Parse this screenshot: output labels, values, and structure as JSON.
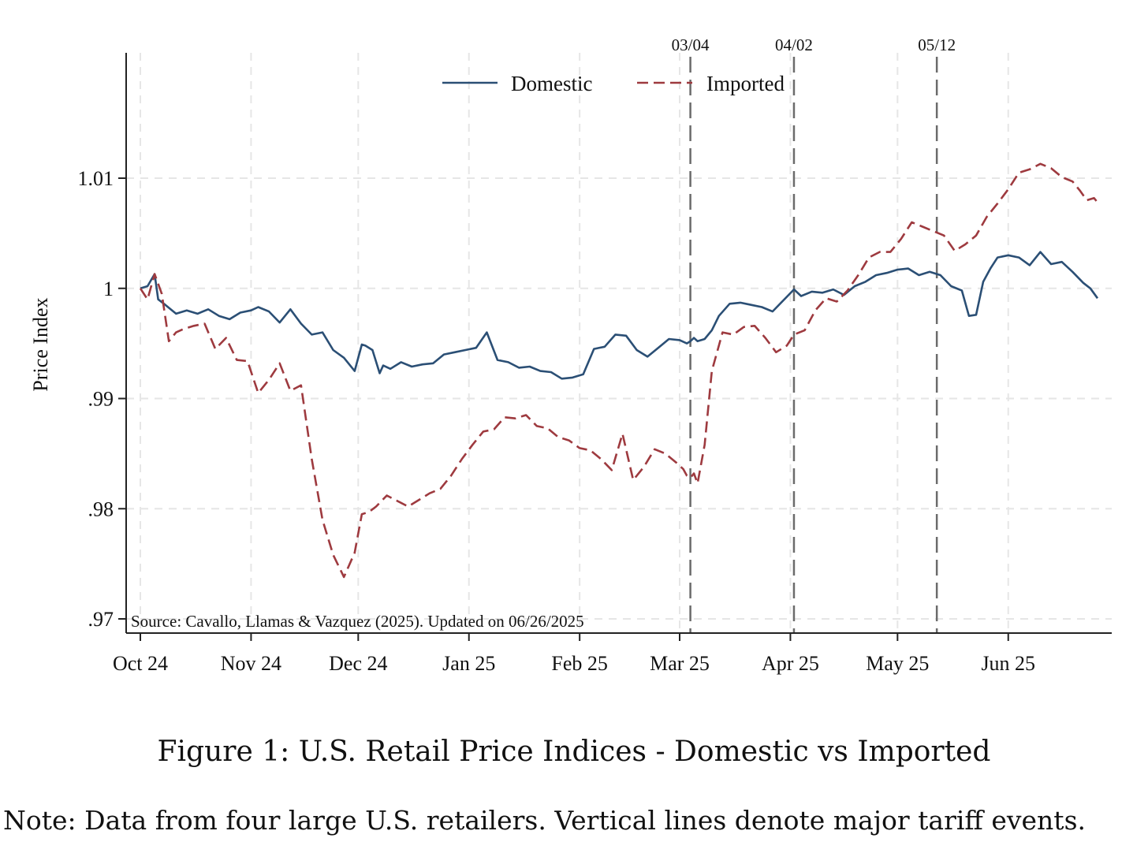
{
  "figure": {
    "caption": "Figure 1: U.S. Retail Price Indices - Domestic vs Imported",
    "note": "Note: Data from four large U.S. retailers. Vertical lines denote major tariff events."
  },
  "chart_data": {
    "type": "line",
    "ylabel": "Price Index",
    "xlabel": "",
    "ylim": [
      0.9685,
      1.0205
    ],
    "yticks": [
      0.97,
      0.98,
      0.99,
      1.0,
      1.01
    ],
    "ytick_labels": [
      ".97",
      ".98",
      ".99",
      "1",
      "1.01"
    ],
    "x_range": [
      "2024-10-01",
      "2025-06-26"
    ],
    "xticks": [
      "2024-10-01",
      "2024-11-01",
      "2024-12-01",
      "2025-01-01",
      "2025-02-01",
      "2025-03-01",
      "2025-04-01",
      "2025-05-01",
      "2025-06-01"
    ],
    "xtick_labels": [
      "Oct 24",
      "Nov 24",
      "Dec 24",
      "Jan 25",
      "Feb 25",
      "Mar 25",
      "Apr 25",
      "May 25",
      "Jun 25"
    ],
    "grid": true,
    "legend_position": "top-center",
    "source_note": "Source: Cavallo, Llamas & Vazquez (2025). Updated on 06/26/2025",
    "event_lines": [
      {
        "date": "2025-03-04",
        "label": "03/04"
      },
      {
        "date": "2025-04-02",
        "label": "04/02"
      },
      {
        "date": "2025-05-12",
        "label": "05/12"
      }
    ],
    "series": [
      {
        "name": "Domestic",
        "color": "#2b4f75",
        "style": "solid",
        "x": [
          "2024-10-01",
          "2024-10-03",
          "2024-10-05",
          "2024-10-06",
          "2024-10-08",
          "2024-10-11",
          "2024-10-14",
          "2024-10-17",
          "2024-10-20",
          "2024-10-23",
          "2024-10-26",
          "2024-10-29",
          "2024-11-01",
          "2024-11-03",
          "2024-11-06",
          "2024-11-09",
          "2024-11-12",
          "2024-11-15",
          "2024-11-18",
          "2024-11-21",
          "2024-11-24",
          "2024-11-27",
          "2024-11-30",
          "2024-12-02",
          "2024-12-03",
          "2024-12-05",
          "2024-12-07",
          "2024-12-08",
          "2024-12-10",
          "2024-12-13",
          "2024-12-16",
          "2024-12-19",
          "2024-12-22",
          "2024-12-25",
          "2024-12-28",
          "2024-12-31",
          "2025-01-03",
          "2025-01-06",
          "2025-01-09",
          "2025-01-12",
          "2025-01-15",
          "2025-01-18",
          "2025-01-21",
          "2025-01-24",
          "2025-01-27",
          "2025-01-30",
          "2025-02-02",
          "2025-02-05",
          "2025-02-08",
          "2025-02-11",
          "2025-02-14",
          "2025-02-17",
          "2025-02-20",
          "2025-02-23",
          "2025-02-26",
          "2025-03-01",
          "2025-03-03",
          "2025-03-04",
          "2025-03-05",
          "2025-03-06",
          "2025-03-08",
          "2025-03-10",
          "2025-03-12",
          "2025-03-15",
          "2025-03-18",
          "2025-03-21",
          "2025-03-24",
          "2025-03-27",
          "2025-03-30",
          "2025-04-02",
          "2025-04-04",
          "2025-04-07",
          "2025-04-10",
          "2025-04-13",
          "2025-04-16",
          "2025-04-19",
          "2025-04-22",
          "2025-04-25",
          "2025-04-28",
          "2025-05-01",
          "2025-05-04",
          "2025-05-07",
          "2025-05-10",
          "2025-05-13",
          "2025-05-16",
          "2025-05-19",
          "2025-05-21",
          "2025-05-23",
          "2025-05-25",
          "2025-05-27",
          "2025-05-29",
          "2025-06-01",
          "2025-06-04",
          "2025-06-07",
          "2025-06-10",
          "2025-06-13",
          "2025-06-16",
          "2025-06-19",
          "2025-06-22",
          "2025-06-24",
          "2025-06-26"
        ],
        "y": [
          1.0,
          1.0002,
          1.0013,
          0.999,
          0.9985,
          0.9977,
          0.998,
          0.9977,
          0.9981,
          0.9975,
          0.9972,
          0.9978,
          0.998,
          0.9983,
          0.9979,
          0.9969,
          0.9981,
          0.9968,
          0.9958,
          0.996,
          0.9944,
          0.9937,
          0.9925,
          0.9949,
          0.9948,
          0.9944,
          0.9923,
          0.993,
          0.9927,
          0.9933,
          0.9929,
          0.9931,
          0.9932,
          0.994,
          0.9942,
          0.9944,
          0.9946,
          0.996,
          0.9935,
          0.9933,
          0.9928,
          0.9929,
          0.9925,
          0.9924,
          0.9918,
          0.9919,
          0.9922,
          0.9945,
          0.9947,
          0.9958,
          0.9957,
          0.9944,
          0.9938,
          0.9946,
          0.9954,
          0.9953,
          0.995,
          0.9952,
          0.9955,
          0.9952,
          0.9954,
          0.9962,
          0.9975,
          0.9986,
          0.9987,
          0.9985,
          0.9983,
          0.9979,
          0.9989,
          0.9999,
          0.9993,
          0.9997,
          0.9996,
          0.9999,
          0.9994,
          1.0002,
          1.0006,
          1.0012,
          1.0014,
          1.0017,
          1.0018,
          1.0012,
          1.0015,
          1.0012,
          1.0002,
          0.9998,
          0.9975,
          0.9976,
          1.0006,
          1.0018,
          1.0028,
          1.003,
          1.0028,
          1.0021,
          1.0033,
          1.0022,
          1.0024,
          1.0015,
          1.0005,
          1.0,
          0.9991
        ]
      },
      {
        "name": "Imported",
        "color": "#9e3a3f",
        "style": "dashed",
        "x": [
          "2024-10-01",
          "2024-10-03",
          "2024-10-05",
          "2024-10-07",
          "2024-10-09",
          "2024-10-11",
          "2024-10-13",
          "2024-10-16",
          "2024-10-19",
          "2024-10-22",
          "2024-10-25",
          "2024-10-28",
          "2024-10-31",
          "2024-11-03",
          "2024-11-06",
          "2024-11-09",
          "2024-11-12",
          "2024-11-15",
          "2024-11-18",
          "2024-11-21",
          "2024-11-24",
          "2024-11-27",
          "2024-11-30",
          "2024-12-02",
          "2024-12-04",
          "2024-12-06",
          "2024-12-09",
          "2024-12-12",
          "2024-12-15",
          "2024-12-18",
          "2024-12-21",
          "2024-12-24",
          "2024-12-27",
          "2024-12-30",
          "2025-01-02",
          "2025-01-05",
          "2025-01-08",
          "2025-01-11",
          "2025-01-14",
          "2025-01-17",
          "2025-01-20",
          "2025-01-23",
          "2025-01-26",
          "2025-01-29",
          "2025-02-01",
          "2025-02-04",
          "2025-02-07",
          "2025-02-10",
          "2025-02-13",
          "2025-02-16",
          "2025-02-19",
          "2025-02-22",
          "2025-02-25",
          "2025-02-28",
          "2025-03-02",
          "2025-03-03",
          "2025-03-04",
          "2025-03-05",
          "2025-03-06",
          "2025-03-08",
          "2025-03-10",
          "2025-03-13",
          "2025-03-16",
          "2025-03-19",
          "2025-03-22",
          "2025-03-25",
          "2025-03-28",
          "2025-03-31",
          "2025-04-02",
          "2025-04-05",
          "2025-04-08",
          "2025-04-11",
          "2025-04-14",
          "2025-04-17",
          "2025-04-20",
          "2025-04-23",
          "2025-04-26",
          "2025-04-29",
          "2025-05-02",
          "2025-05-05",
          "2025-05-08",
          "2025-05-11",
          "2025-05-14",
          "2025-05-17",
          "2025-05-20",
          "2025-05-23",
          "2025-05-26",
          "2025-05-29",
          "2025-06-01",
          "2025-06-04",
          "2025-06-07",
          "2025-06-10",
          "2025-06-13",
          "2025-06-16",
          "2025-06-19",
          "2025-06-21",
          "2025-06-23",
          "2025-06-25",
          "2025-06-26"
        ],
        "y": [
          1.0,
          0.999,
          1.0013,
          0.9995,
          0.9952,
          0.996,
          0.9963,
          0.9966,
          0.9968,
          0.9945,
          0.9955,
          0.9935,
          0.9934,
          0.9905,
          0.9917,
          0.9932,
          0.9907,
          0.9912,
          0.9845,
          0.979,
          0.9758,
          0.9738,
          0.976,
          0.9795,
          0.9797,
          0.9802,
          0.9812,
          0.9807,
          0.9802,
          0.9808,
          0.9814,
          0.9818,
          0.983,
          0.9845,
          0.9858,
          0.987,
          0.9872,
          0.9883,
          0.9882,
          0.9885,
          0.9875,
          0.9873,
          0.9865,
          0.9862,
          0.9855,
          0.9853,
          0.9845,
          0.9835,
          0.9868,
          0.9826,
          0.9838,
          0.9854,
          0.985,
          0.9842,
          0.9836,
          0.983,
          0.9828,
          0.9832,
          0.9823,
          0.9858,
          0.9925,
          0.996,
          0.9958,
          0.9965,
          0.9966,
          0.9955,
          0.9942,
          0.9948,
          0.9958,
          0.9962,
          0.998,
          0.9991,
          0.9988,
          0.9998,
          1.0012,
          1.0028,
          1.0033,
          1.0033,
          1.0045,
          1.006,
          1.0056,
          1.0052,
          1.0048,
          1.0034,
          1.004,
          1.0048,
          1.0065,
          1.0077,
          1.009,
          1.0105,
          1.0108,
          1.0113,
          1.0109,
          1.0101,
          1.0097,
          1.0089,
          1.008,
          1.0082,
          1.0078
        ]
      }
    ]
  }
}
